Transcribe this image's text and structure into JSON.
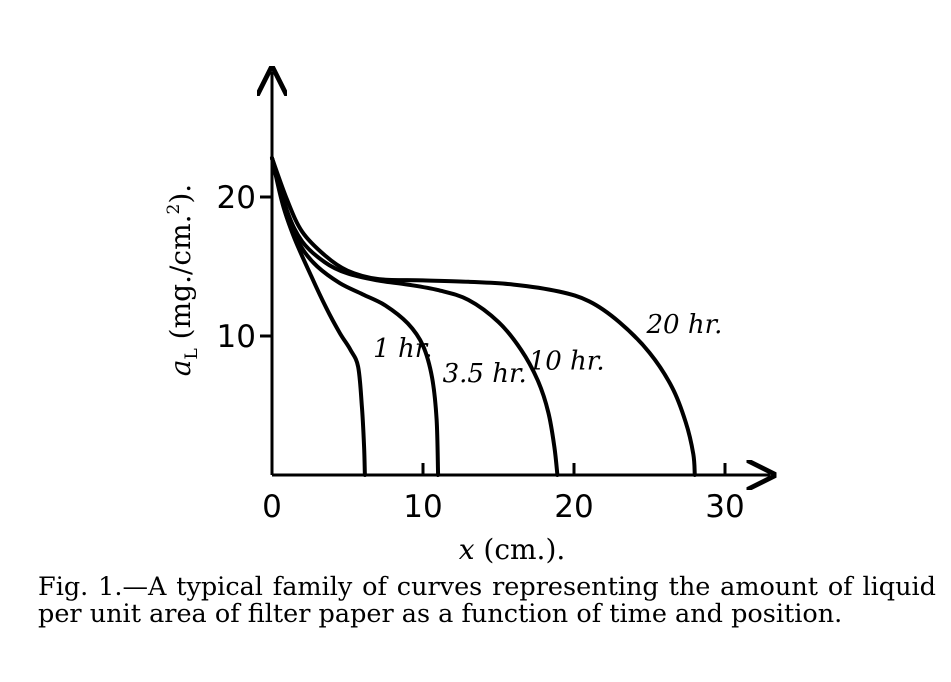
{
  "chart_data": {
    "type": "line",
    "xlabel": "x (cm.).",
    "ylabel": "aₗ (mg./cm.²).",
    "ylabel_parts": {
      "symbol": "a",
      "subscript": "L",
      "unit": " (mg./cm.",
      "sup": "2",
      "tail": ")."
    },
    "xlabel_parts": {
      "var": "x",
      "unit": " (cm.)."
    },
    "xlim": [
      0,
      33
    ],
    "ylim": [
      0,
      29
    ],
    "x_ticks": [
      {
        "value": 0,
        "label": "0"
      },
      {
        "value": 10,
        "label": "10"
      },
      {
        "value": 20,
        "label": "20"
      },
      {
        "value": 30,
        "label": "30"
      }
    ],
    "y_ticks": [
      {
        "value": 10,
        "label": "10"
      },
      {
        "value": 20,
        "label": "20"
      }
    ],
    "grid": false,
    "series": [
      {
        "name": "1 hr.",
        "x": [
          0.0,
          0.7,
          1.5,
          2.6,
          3.6,
          4.5,
          5.2,
          5.7,
          5.95,
          6.1,
          6.15
        ],
        "y": [
          22.8,
          19.5,
          17.0,
          14.3,
          12.0,
          10.2,
          9.0,
          7.8,
          5.0,
          2.0,
          0.0
        ]
      },
      {
        "name": "3.5 hr.",
        "x": [
          0.0,
          1.0,
          2.0,
          3.0,
          4.5,
          6.0,
          7.5,
          9.0,
          10.0,
          10.6,
          10.9,
          11.0
        ],
        "y": [
          22.8,
          18.5,
          16.3,
          15.0,
          13.8,
          13.0,
          12.2,
          10.9,
          9.3,
          7.0,
          4.0,
          0.0
        ]
      },
      {
        "name": "10 hr.",
        "x": [
          0.0,
          1.0,
          2.0,
          3.5,
          5.0,
          7.0,
          9.0,
          11.0,
          13.0,
          15.0,
          16.5,
          17.6,
          18.3,
          18.7,
          18.9
        ],
        "y": [
          22.8,
          19.0,
          16.8,
          15.3,
          14.5,
          14.0,
          13.7,
          13.3,
          12.6,
          11.0,
          9.0,
          6.8,
          4.5,
          2.0,
          0.0
        ]
      },
      {
        "name": "20 hr.",
        "x": [
          0.0,
          1.0,
          2.0,
          3.5,
          5.0,
          7.0,
          10.0,
          13.0,
          16.0,
          19.0,
          21.0,
          23.0,
          25.0,
          26.5,
          27.4,
          27.9,
          28.0
        ],
        "y": [
          22.8,
          19.8,
          17.5,
          15.8,
          14.7,
          14.1,
          14.0,
          13.9,
          13.7,
          13.2,
          12.5,
          11.0,
          8.8,
          6.3,
          3.8,
          1.5,
          0.0
        ]
      }
    ],
    "series_labels": [
      {
        "series": 0,
        "text": "1 hr.",
        "at": [
          6.7,
          8.5
        ]
      },
      {
        "series": 1,
        "text": "3.5 hr.",
        "at": [
          11.3,
          6.7
        ]
      },
      {
        "series": 2,
        "text": "10 hr.",
        "at": [
          17.0,
          7.6
        ]
      },
      {
        "series": 3,
        "text": "20 hr.",
        "at": [
          24.8,
          10.2
        ]
      }
    ]
  },
  "caption": "Fig. 1.—A typical family of curves representing the amount of liquid per unit area of filter paper as a function of time and position."
}
